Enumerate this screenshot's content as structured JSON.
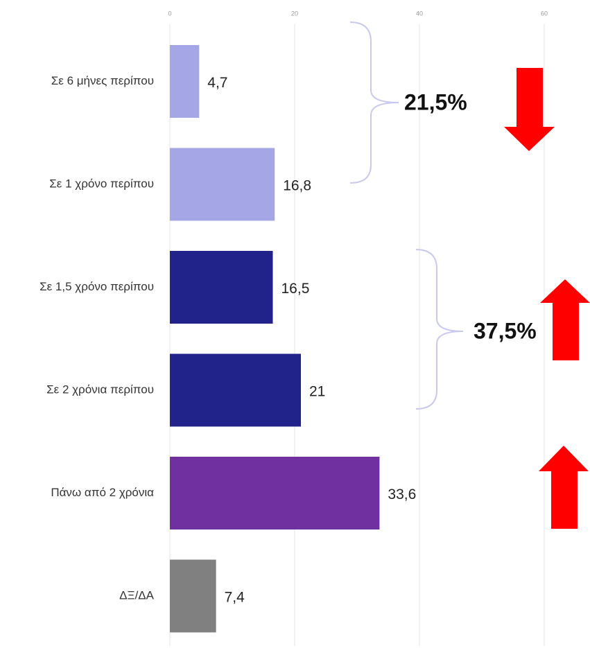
{
  "chart_data": {
    "type": "bar",
    "orientation": "horizontal",
    "categories": [
      "Σε 6 μήνες περίπου",
      "Σε 1 χρόνο περίπου",
      "Σε 1,5 χρόνο περίπου",
      "Σε 2 χρόνια περίπου",
      "Πάνω από 2 χρόνια",
      "ΔΞ/ΔΑ"
    ],
    "values": [
      4.7,
      16.8,
      16.5,
      21,
      33.6,
      7.4
    ],
    "value_labels": [
      "4,7",
      "16,8",
      "16,5",
      "21",
      "33,6",
      "7,4"
    ],
    "colors": [
      "#a4a6e6",
      "#a4a6e6",
      "#22238a",
      "#22238a",
      "#7030a0",
      "#808080"
    ],
    "xlim": [
      0,
      60
    ],
    "xticks": [
      0,
      20,
      40,
      60
    ],
    "grid": true,
    "annotations": [
      "21,5%",
      "37,5%"
    ]
  }
}
